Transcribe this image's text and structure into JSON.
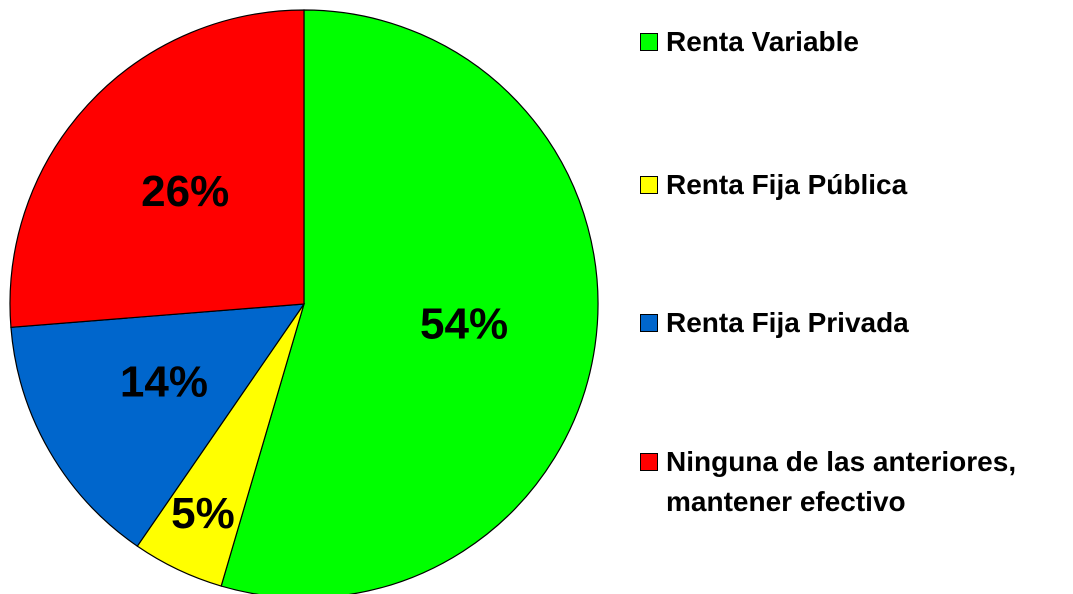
{
  "chart_data": {
    "type": "pie",
    "categories": [
      "Renta Variable",
      "Renta Fija Pública",
      "Renta Fija Privada",
      "Ninguna de las anteriores, mantener efectivo"
    ],
    "values": [
      54,
      5,
      14,
      26
    ],
    "value_labels": [
      "54%",
      "5%",
      "14%",
      "26%"
    ],
    "colors": [
      "#00ff00",
      "#ffff00",
      "#0066cc",
      "#ff0000"
    ],
    "legend": "right"
  }
}
